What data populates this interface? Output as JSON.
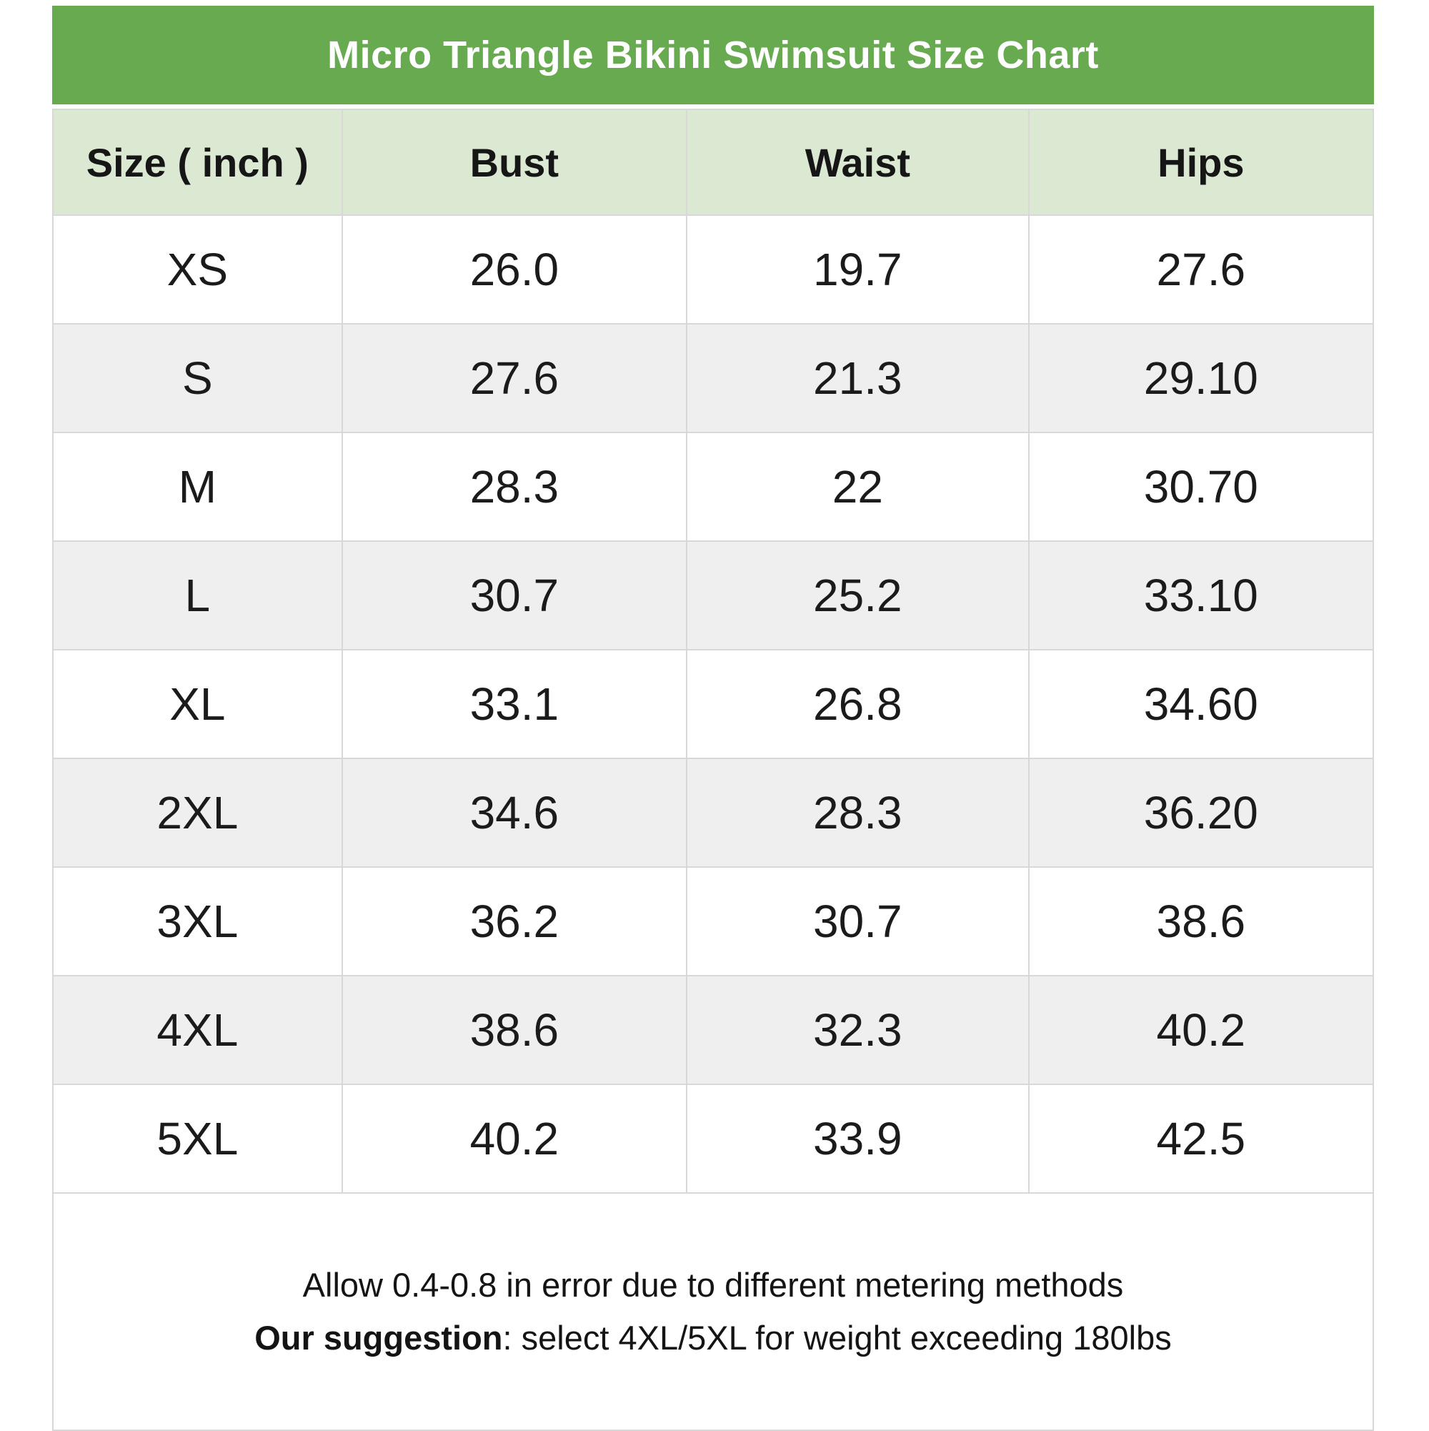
{
  "title": "Micro Triangle Bikini Swimsuit Size Chart",
  "columns": [
    "Size ( inch )",
    "Bust",
    "Waist",
    "Hips"
  ],
  "rows": [
    {
      "size": "XS",
      "bust": "26.0",
      "waist": "19.7",
      "hips": "27.6"
    },
    {
      "size": "S",
      "bust": "27.6",
      "waist": "21.3",
      "hips": "29.10"
    },
    {
      "size": "M",
      "bust": "28.3",
      "waist": "22",
      "hips": "30.70"
    },
    {
      "size": "L",
      "bust": "30.7",
      "waist": "25.2",
      "hips": "33.10"
    },
    {
      "size": "XL",
      "bust": "33.1",
      "waist": "26.8",
      "hips": "34.60"
    },
    {
      "size": "2XL",
      "bust": "34.6",
      "waist": "28.3",
      "hips": "36.20"
    },
    {
      "size": "3XL",
      "bust": "36.2",
      "waist": "30.7",
      "hips": "38.6"
    },
    {
      "size": "4XL",
      "bust": "38.6",
      "waist": "32.3",
      "hips": "40.2"
    },
    {
      "size": "5XL",
      "bust": "40.2",
      "waist": "33.9",
      "hips": "42.5"
    }
  ],
  "notes": {
    "line1": "Allow 0.4-0.8 in error due to different metering methods",
    "line2_bold": "Our suggestion",
    "line2_rest": ": select 4XL/5XL for weight exceeding 180lbs"
  },
  "colors": {
    "title_bar_bg": "#67aa4f",
    "title_text": "#ffffff",
    "header_bg": "#dbe8d2",
    "alt_row_bg": "#efefef",
    "border_color": "#d8d8d8"
  },
  "chart_data": {
    "type": "table",
    "title": "Micro Triangle Bikini Swimsuit Size Chart",
    "unit": "inch",
    "columns": [
      "Size ( inch )",
      "Bust",
      "Waist",
      "Hips"
    ],
    "categories": [
      "XS",
      "S",
      "M",
      "L",
      "XL",
      "2XL",
      "3XL",
      "4XL",
      "5XL"
    ],
    "series": [
      {
        "name": "Bust",
        "values": [
          26.0,
          27.6,
          28.3,
          30.7,
          33.1,
          34.6,
          36.2,
          38.6,
          40.2
        ]
      },
      {
        "name": "Waist",
        "values": [
          19.7,
          21.3,
          22,
          25.2,
          26.8,
          28.3,
          30.7,
          32.3,
          33.9
        ]
      },
      {
        "name": "Hips",
        "values": [
          27.6,
          29.1,
          30.7,
          33.1,
          34.6,
          36.2,
          38.6,
          40.2,
          42.5
        ]
      }
    ],
    "annotations": [
      "Allow 0.4-0.8 in error due to different metering methods",
      "Our suggestion: select 4XL/5XL for weight exceeding 180lbs"
    ]
  }
}
